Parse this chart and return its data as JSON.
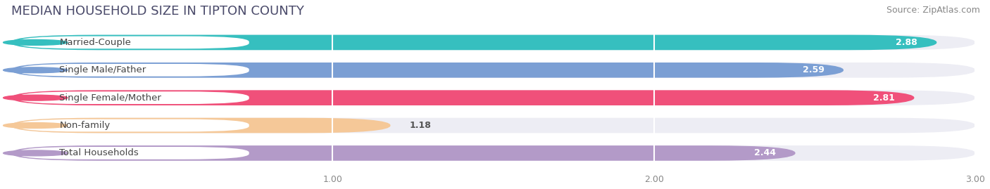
{
  "title": "MEDIAN HOUSEHOLD SIZE IN TIPTON COUNTY",
  "source": "Source: ZipAtlas.com",
  "categories": [
    "Married-Couple",
    "Single Male/Father",
    "Single Female/Mother",
    "Non-family",
    "Total Households"
  ],
  "values": [
    2.88,
    2.59,
    2.81,
    1.18,
    2.44
  ],
  "bar_colors": [
    "#36bfbf",
    "#7b9fd4",
    "#f0507a",
    "#f5c898",
    "#b39ac8"
  ],
  "label_dot_colors": [
    "#36bfbf",
    "#7b9fd4",
    "#f0507a",
    "#f5c898",
    "#b39ac8"
  ],
  "background_color": "#ffffff",
  "bar_bg_color": "#ededf4",
  "xlim": [
    0,
    3.0
  ],
  "xticks": [
    1.0,
    2.0,
    3.0
  ],
  "title_fontsize": 13,
  "source_fontsize": 9,
  "label_fontsize": 9.5,
  "value_fontsize": 9
}
